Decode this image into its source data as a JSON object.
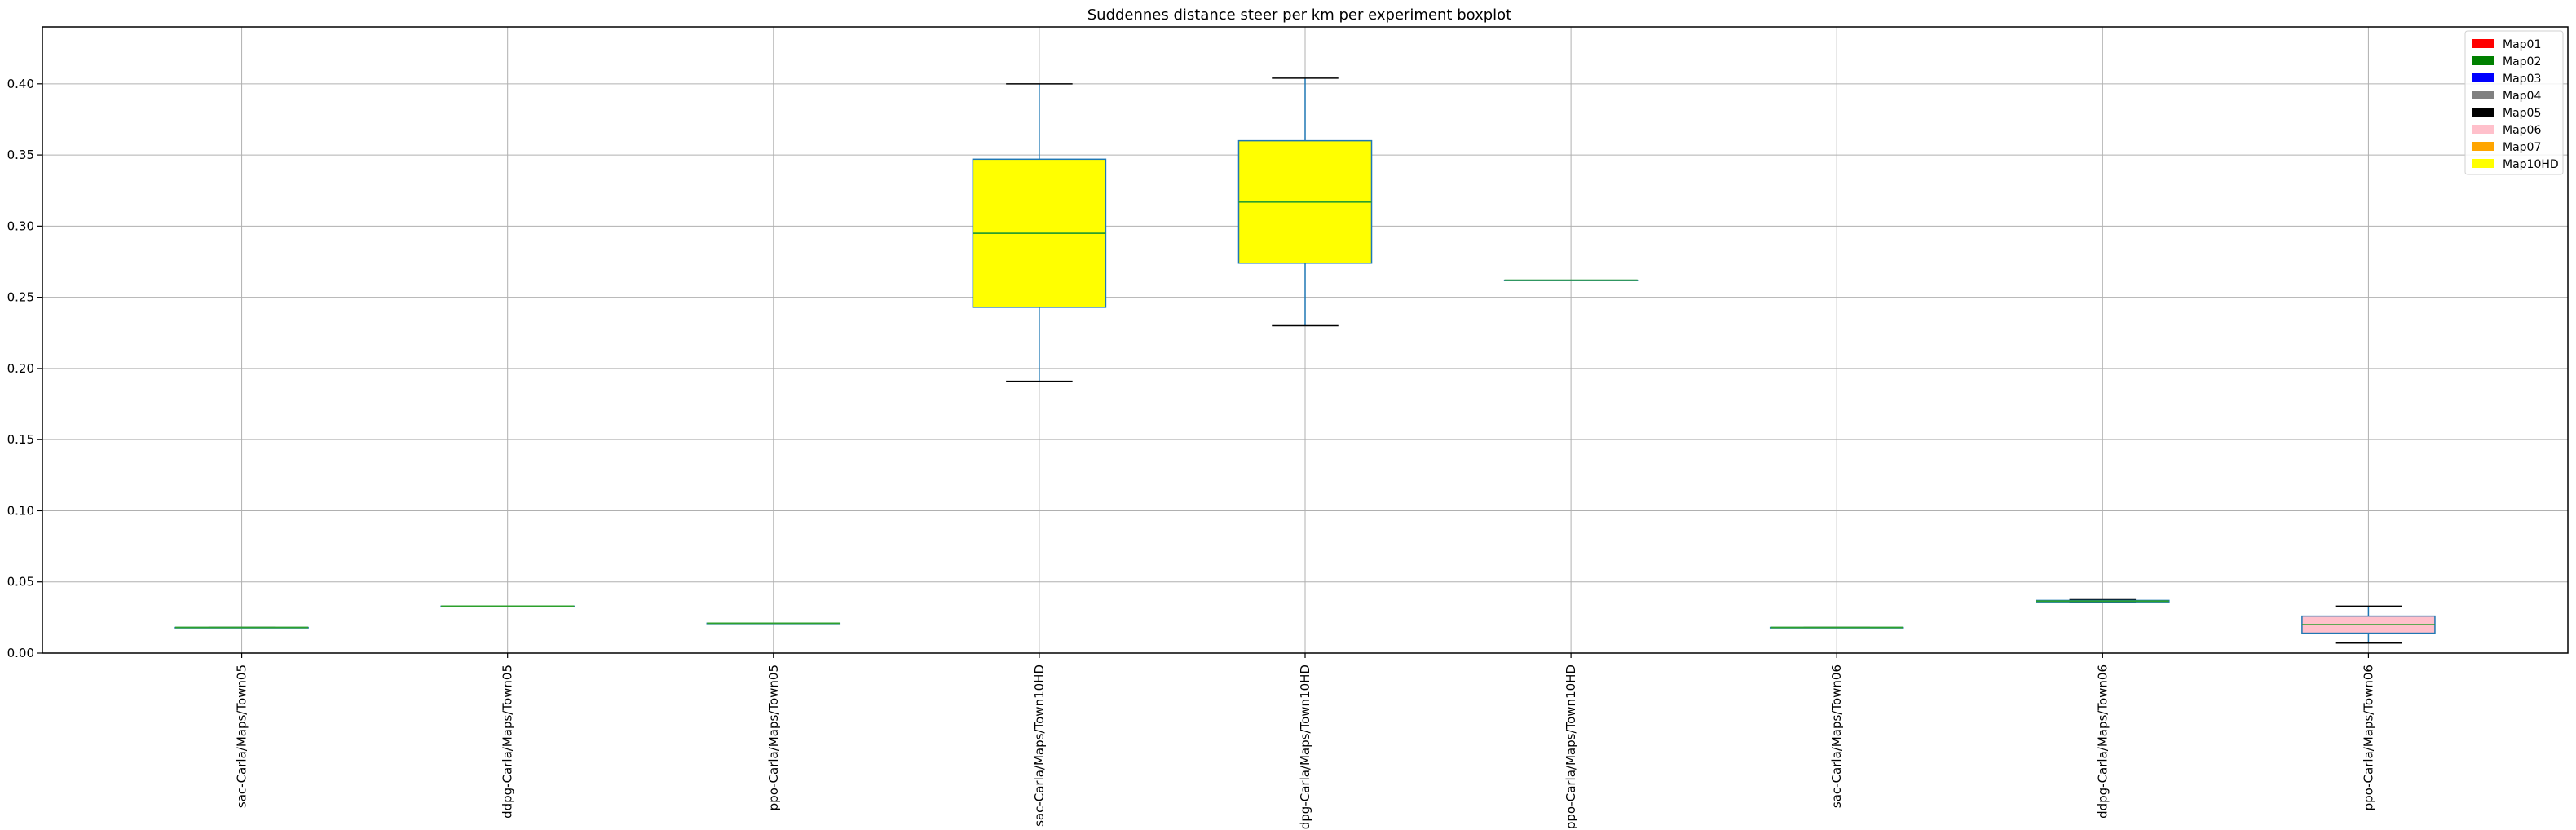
{
  "chart_data": {
    "type": "boxplot",
    "title": "Suddennes distance steer per km per experiment boxplot",
    "xlabel": "",
    "ylabel": "",
    "ylim": [
      0,
      0.44
    ],
    "yticks": [
      0.0,
      0.05,
      0.1,
      0.15,
      0.2,
      0.25,
      0.3,
      0.35,
      0.4
    ],
    "grid": true,
    "legend_position": "top-right",
    "legend": [
      {
        "name": "Map01",
        "color": "#ff0000"
      },
      {
        "name": "Map02",
        "color": "#008000"
      },
      {
        "name": "Map03",
        "color": "#0000ff"
      },
      {
        "name": "Map04",
        "color": "#808080"
      },
      {
        "name": "Map05",
        "color": "#000000"
      },
      {
        "name": "Map06",
        "color": "#ffc0cb"
      },
      {
        "name": "Map07",
        "color": "#ffa500"
      },
      {
        "name": "Map10HD",
        "color": "#ffff00"
      }
    ],
    "categories": [
      "sac-Carla/Maps/Town05",
      "ddpg-Carla/Maps/Town05",
      "ppo-Carla/Maps/Town05",
      "sac-Carla/Maps/Town10HD",
      "ddpg-Carla/Maps/Town10HD",
      "ppo-Carla/Maps/Town10HD",
      "sac-Carla/Maps/Town06",
      "ddpg-Carla/Maps/Town06",
      "ppo-Carla/Maps/Town06"
    ],
    "boxes": [
      {
        "whislo": 0.018,
        "q1": 0.018,
        "med": 0.018,
        "q3": 0.018,
        "whishi": 0.018,
        "fill": "#000000"
      },
      {
        "whislo": 0.033,
        "q1": 0.033,
        "med": 0.033,
        "q3": 0.033,
        "whishi": 0.033,
        "fill": "#000000"
      },
      {
        "whislo": 0.021,
        "q1": 0.021,
        "med": 0.021,
        "q3": 0.021,
        "whishi": 0.021,
        "fill": "#000000"
      },
      {
        "whislo": 0.191,
        "q1": 0.243,
        "med": 0.295,
        "q3": 0.347,
        "whishi": 0.4,
        "fill": "#ffff00"
      },
      {
        "whislo": 0.23,
        "q1": 0.274,
        "med": 0.317,
        "q3": 0.36,
        "whishi": 0.404,
        "fill": "#ffff00"
      },
      {
        "whislo": 0.262,
        "q1": 0.262,
        "med": 0.262,
        "q3": 0.262,
        "whishi": 0.262,
        "fill": "#ffff00"
      },
      {
        "whislo": 0.018,
        "q1": 0.018,
        "med": 0.018,
        "q3": 0.018,
        "whishi": 0.018,
        "fill": "#ffc0cb"
      },
      {
        "whislo": 0.0355,
        "q1": 0.036,
        "med": 0.0365,
        "q3": 0.037,
        "whishi": 0.0375,
        "fill": "#ffc0cb"
      },
      {
        "whislo": 0.007,
        "q1": 0.014,
        "med": 0.02,
        "q3": 0.026,
        "whishi": 0.033,
        "fill": "#ffc0cb"
      }
    ]
  }
}
